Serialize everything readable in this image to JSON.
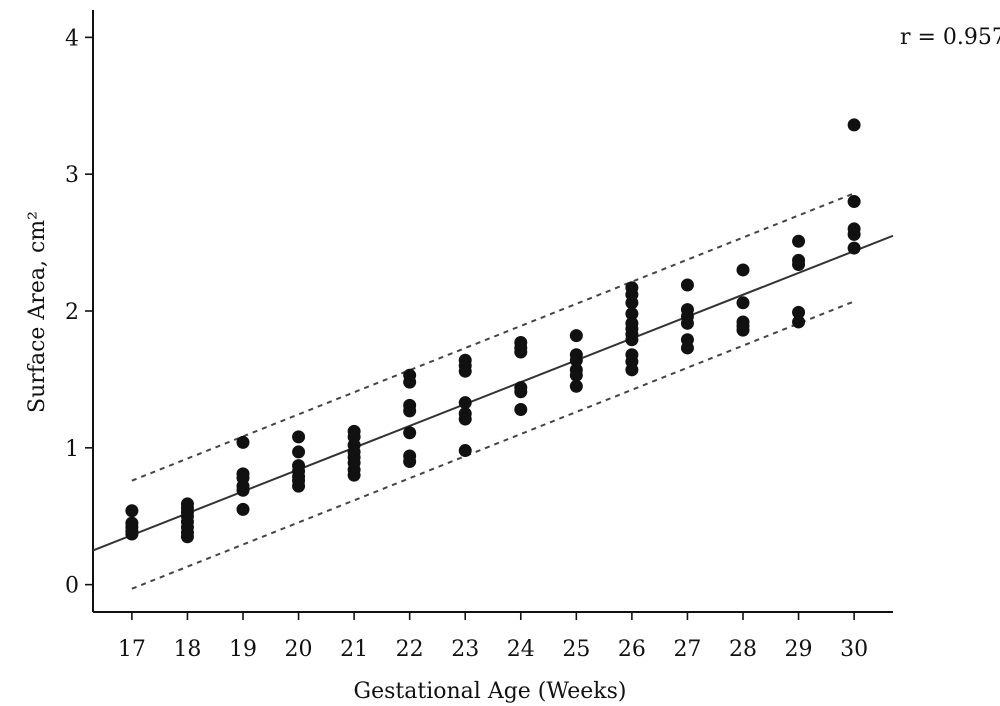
{
  "chart_data": {
    "type": "scatter",
    "title": "",
    "xlabel": "Gestational Age (Weeks)",
    "ylabel": "Surface Area, cm²",
    "annotation": "r = 0.957",
    "xlim": [
      16.3,
      30.7
    ],
    "ylim": [
      -0.2,
      4.2
    ],
    "x_ticks": [
      17,
      18,
      19,
      20,
      21,
      22,
      23,
      24,
      25,
      26,
      27,
      28,
      29,
      30
    ],
    "y_ticks": [
      0,
      1,
      2,
      3,
      4
    ],
    "grid": false,
    "series": [
      {
        "points": [
          [
            17,
            0.54
          ],
          [
            17,
            0.45
          ],
          [
            17,
            0.42
          ],
          [
            17,
            0.39
          ],
          [
            17,
            0.37
          ],
          [
            18,
            0.59
          ],
          [
            18,
            0.56
          ],
          [
            18,
            0.53
          ],
          [
            18,
            0.5
          ],
          [
            18,
            0.46
          ],
          [
            18,
            0.42
          ],
          [
            18,
            0.38
          ],
          [
            18,
            0.35
          ],
          [
            19,
            1.04
          ],
          [
            19,
            0.81
          ],
          [
            19,
            0.78
          ],
          [
            19,
            0.72
          ],
          [
            19,
            0.69
          ],
          [
            19,
            0.55
          ],
          [
            20,
            1.08
          ],
          [
            20,
            0.97
          ],
          [
            20,
            0.87
          ],
          [
            20,
            0.83
          ],
          [
            20,
            0.79
          ],
          [
            20,
            0.76
          ],
          [
            20,
            0.72
          ],
          [
            21,
            1.12
          ],
          [
            21,
            1.08
          ],
          [
            21,
            1.02
          ],
          [
            21,
            0.97
          ],
          [
            21,
            0.93
          ],
          [
            21,
            0.89
          ],
          [
            21,
            0.84
          ],
          [
            21,
            0.8
          ],
          [
            22,
            1.53
          ],
          [
            22,
            1.48
          ],
          [
            22,
            1.31
          ],
          [
            22,
            1.27
          ],
          [
            22,
            1.11
          ],
          [
            22,
            0.94
          ],
          [
            22,
            0.9
          ],
          [
            23,
            1.64
          ],
          [
            23,
            1.6
          ],
          [
            23,
            1.56
          ],
          [
            23,
            1.33
          ],
          [
            23,
            1.25
          ],
          [
            23,
            1.21
          ],
          [
            23,
            0.98
          ],
          [
            24,
            1.77
          ],
          [
            24,
            1.73
          ],
          [
            24,
            1.7
          ],
          [
            24,
            1.44
          ],
          [
            24,
            1.41
          ],
          [
            24,
            1.28
          ],
          [
            25,
            1.82
          ],
          [
            25,
            1.68
          ],
          [
            25,
            1.64
          ],
          [
            25,
            1.57
          ],
          [
            25,
            1.53
          ],
          [
            25,
            1.45
          ],
          [
            26,
            2.17
          ],
          [
            26,
            2.12
          ],
          [
            26,
            2.06
          ],
          [
            26,
            1.98
          ],
          [
            26,
            1.91
          ],
          [
            26,
            1.87
          ],
          [
            26,
            1.83
          ],
          [
            26,
            1.79
          ],
          [
            26,
            1.68
          ],
          [
            26,
            1.63
          ],
          [
            26,
            1.57
          ],
          [
            27,
            2.19
          ],
          [
            27,
            2.01
          ],
          [
            27,
            1.96
          ],
          [
            27,
            1.91
          ],
          [
            27,
            1.79
          ],
          [
            27,
            1.73
          ],
          [
            28,
            2.3
          ],
          [
            28,
            2.06
          ],
          [
            28,
            1.92
          ],
          [
            28,
            1.89
          ],
          [
            28,
            1.86
          ],
          [
            29,
            2.51
          ],
          [
            29,
            2.37
          ],
          [
            29,
            2.34
          ],
          [
            29,
            1.99
          ],
          [
            29,
            1.92
          ],
          [
            30,
            3.36
          ],
          [
            30,
            2.8
          ],
          [
            30,
            2.6
          ],
          [
            30,
            2.56
          ],
          [
            30,
            2.46
          ]
        ]
      }
    ],
    "fit_line": {
      "x": [
        16.3,
        30.7
      ],
      "y": [
        0.25,
        2.55
      ],
      "style": "solid"
    },
    "confidence_lines": [
      {
        "x": [
          17,
          30
        ],
        "y": [
          0.76,
          2.86
        ],
        "style": "dashed"
      },
      {
        "x": [
          17,
          30
        ],
        "y": [
          -0.03,
          2.07
        ],
        "style": "dashed"
      }
    ]
  }
}
